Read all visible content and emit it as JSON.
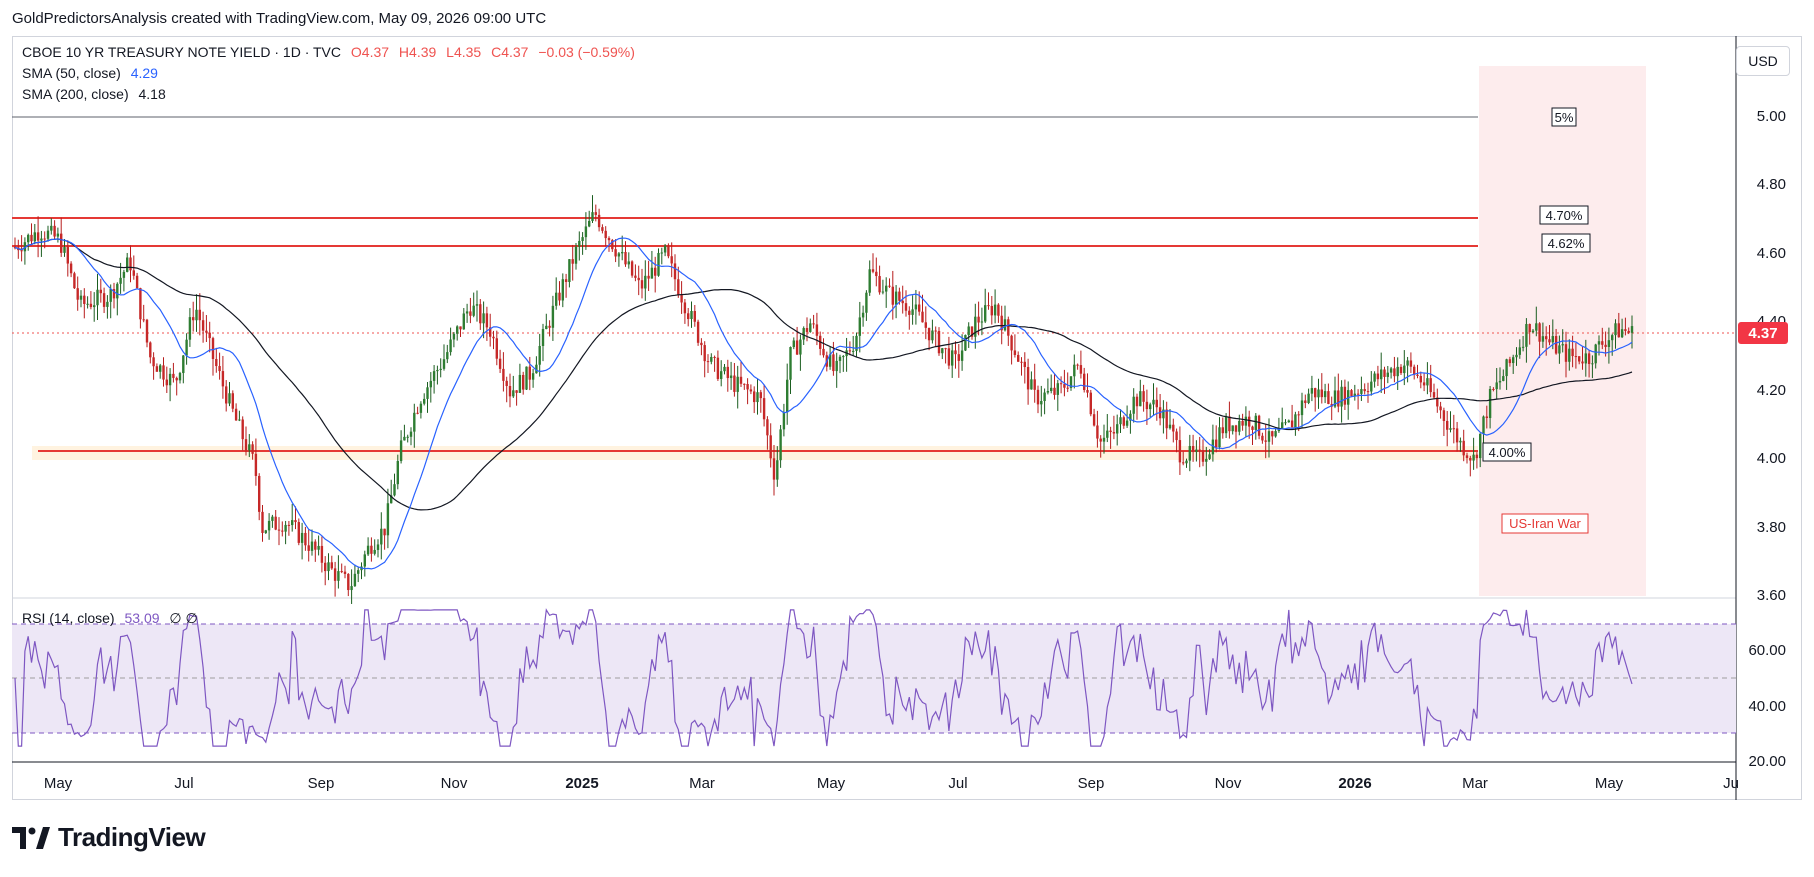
{
  "attribution": "GoldPredictorsAnalysis created with TradingView.com, May 09, 2026 09:00 UTC",
  "legend": {
    "symbol": "CBOE 10 YR TREASURY NOTE YIELD · 1D · TVC",
    "open": "O4.37",
    "high": "H4.39",
    "low": "L4.35",
    "close": "C4.37",
    "change": "−0.03 (−0.59%)",
    "sma50_label": "SMA (50, close)",
    "sma50_value": "4.29",
    "sma200_label": "SMA (200, close)",
    "sma200_value": "4.18",
    "rsi_label": "RSI (14, close)",
    "rsi_value": "53.09",
    "rsi_extra": "∅  ∅"
  },
  "currency": "USD",
  "price_axis": [
    "5.00",
    "4.80",
    "4.60",
    "4.40",
    "4.20",
    "4.00",
    "3.80",
    "3.60"
  ],
  "rsi_axis": [
    "60.00",
    "40.00",
    "20.00"
  ],
  "time_axis": [
    "May",
    "Jul",
    "Sep",
    "Nov",
    "2025",
    "Mar",
    "May",
    "Jul",
    "Sep",
    "Nov",
    "2026",
    "Mar",
    "May",
    "Ju"
  ],
  "current_price": "4.37",
  "annotations": {
    "level_5": "5%",
    "level_470": "4.70%",
    "level_462": "4.62%",
    "level_400": "4.00%",
    "event": "US-Iran War"
  },
  "brand": "TradingView",
  "colors": {
    "up": "#26a69a",
    "up_body": "#1b5e20",
    "down": "#b71c1c",
    "resistance": "#e53935",
    "sma50": "#2962ff",
    "sma200": "#131722",
    "rsi": "#7e57c2",
    "rsi_band": "#ede7f6",
    "event_zone": "#fdeced"
  }
}
